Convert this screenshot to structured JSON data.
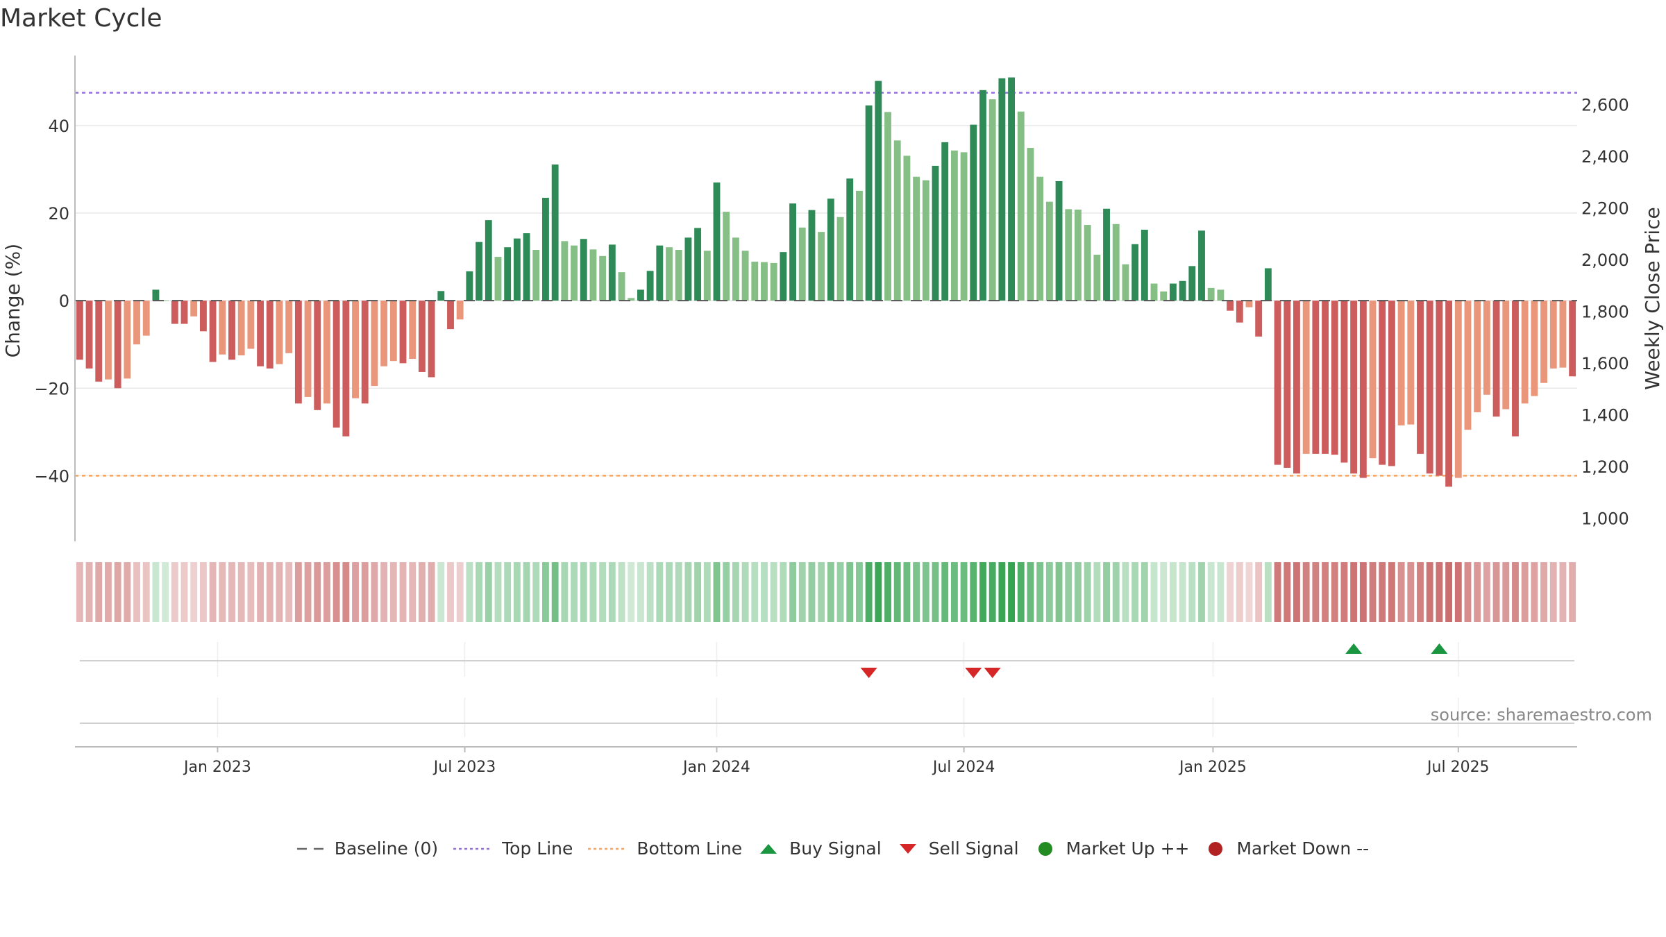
{
  "header": {
    "title": "Market Cycle"
  },
  "source": "source: sharemaestro.com",
  "chart_data": {
    "type": "bar",
    "title": "Market Cycle",
    "ylabel": "Change (%)",
    "y2label": "Weekly Close Price",
    "ylim": [
      -55,
      56
    ],
    "y2lim": [
      910,
      2790
    ],
    "yticks": [
      40,
      20,
      0,
      -20,
      -40
    ],
    "yticks_labels": [
      "40",
      "20",
      "0",
      "−20",
      "−40"
    ],
    "y2ticks": [
      2600,
      2400,
      2200,
      2000,
      1800,
      1600,
      1400,
      1200,
      1000
    ],
    "y2ticks_labels": [
      "2,600",
      "2,400",
      "2,200",
      "2,000",
      "1,800",
      "1,600",
      "1,400",
      "1,200",
      "1,000"
    ],
    "xticks": [
      "Jan 2023",
      "Jul 2023",
      "Jan 2024",
      "Jul 2024",
      "Jan 2025",
      "Jul 2025"
    ],
    "xtick_weeks": [
      15,
      41,
      67.5,
      93.5,
      119.7,
      145.5
    ],
    "top_line": 47.5,
    "bottom_line": -40,
    "grid": true,
    "legend_position": "bottom",
    "colors": {
      "strong_up": "#2e8b57",
      "weak_up": "#86bf86",
      "strong_down": "#cd5c5c",
      "weak_down": "#e9967a",
      "top_line": "#9370db",
      "bottom_line": "#f4a460",
      "buy": "#1a9641",
      "sell": "#d62728",
      "market_up": "#228b22",
      "market_down": "#b22222"
    },
    "weeks": [
      {
        "v": -13.5,
        "s": 1
      },
      {
        "v": -15.5,
        "s": 1
      },
      {
        "v": -18.5,
        "s": 1
      },
      {
        "v": -18,
        "s": 0
      },
      {
        "v": -20,
        "s": 1
      },
      {
        "v": -17.8,
        "s": 0
      },
      {
        "v": -10,
        "s": 0
      },
      {
        "v": -8,
        "s": 0
      },
      {
        "v": 2.5,
        "s": 1
      },
      {
        "v": 0,
        "s": 0
      },
      {
        "v": -5.3,
        "s": 1
      },
      {
        "v": -5.3,
        "s": 1
      },
      {
        "v": -3.6,
        "s": 0
      },
      {
        "v": -7,
        "s": 1
      },
      {
        "v": -14,
        "s": 1
      },
      {
        "v": -12.3,
        "s": 0
      },
      {
        "v": -13.5,
        "s": 1
      },
      {
        "v": -12.5,
        "s": 0
      },
      {
        "v": -11,
        "s": 0
      },
      {
        "v": -15,
        "s": 1
      },
      {
        "v": -15.5,
        "s": 1
      },
      {
        "v": -14.5,
        "s": 0
      },
      {
        "v": -12,
        "s": 0
      },
      {
        "v": -23.5,
        "s": 1
      },
      {
        "v": -22,
        "s": 0
      },
      {
        "v": -25,
        "s": 1
      },
      {
        "v": -23.5,
        "s": 0
      },
      {
        "v": -29,
        "s": 1
      },
      {
        "v": -31,
        "s": 1
      },
      {
        "v": -22.3,
        "s": 0
      },
      {
        "v": -23.5,
        "s": 1
      },
      {
        "v": -19.5,
        "s": 0
      },
      {
        "v": -15,
        "s": 0
      },
      {
        "v": -13.8,
        "s": 0
      },
      {
        "v": -14.3,
        "s": 1
      },
      {
        "v": -13.3,
        "s": 0
      },
      {
        "v": -16.3,
        "s": 1
      },
      {
        "v": -17.5,
        "s": 1
      },
      {
        "v": 2.2,
        "s": 1
      },
      {
        "v": -6.5,
        "s": 1
      },
      {
        "v": -4.3,
        "s": 0
      },
      {
        "v": 6.7,
        "s": 1
      },
      {
        "v": 13.4,
        "s": 1
      },
      {
        "v": 18.4,
        "s": 1
      },
      {
        "v": 10,
        "s": 0
      },
      {
        "v": 12.2,
        "s": 1
      },
      {
        "v": 14.2,
        "s": 1
      },
      {
        "v": 15.4,
        "s": 1
      },
      {
        "v": 11.6,
        "s": 0
      },
      {
        "v": 23.5,
        "s": 1
      },
      {
        "v": 31.1,
        "s": 1
      },
      {
        "v": 13.6,
        "s": 0
      },
      {
        "v": 12.6,
        "s": 0
      },
      {
        "v": 14.1,
        "s": 1
      },
      {
        "v": 11.7,
        "s": 0
      },
      {
        "v": 10.2,
        "s": 0
      },
      {
        "v": 12.8,
        "s": 1
      },
      {
        "v": 6.5,
        "s": 0
      },
      {
        "v": 0.6,
        "s": 0
      },
      {
        "v": 2.5,
        "s": 1
      },
      {
        "v": 6.8,
        "s": 1
      },
      {
        "v": 12.6,
        "s": 1
      },
      {
        "v": 12.2,
        "s": 0
      },
      {
        "v": 11.6,
        "s": 0
      },
      {
        "v": 14.4,
        "s": 1
      },
      {
        "v": 16.6,
        "s": 1
      },
      {
        "v": 11.4,
        "s": 0
      },
      {
        "v": 27,
        "s": 1
      },
      {
        "v": 20.3,
        "s": 0
      },
      {
        "v": 14.4,
        "s": 0
      },
      {
        "v": 11.4,
        "s": 0
      },
      {
        "v": 8.9,
        "s": 0
      },
      {
        "v": 8.8,
        "s": 0
      },
      {
        "v": 8.6,
        "s": 0
      },
      {
        "v": 11.1,
        "s": 1
      },
      {
        "v": 22.2,
        "s": 1
      },
      {
        "v": 16.7,
        "s": 0
      },
      {
        "v": 20.7,
        "s": 1
      },
      {
        "v": 15.7,
        "s": 0
      },
      {
        "v": 23.3,
        "s": 1
      },
      {
        "v": 19.1,
        "s": 0
      },
      {
        "v": 27.9,
        "s": 1
      },
      {
        "v": 25.1,
        "s": 0
      },
      {
        "v": 44.6,
        "s": 1
      },
      {
        "v": 50.2,
        "s": 1
      },
      {
        "v": 43.1,
        "s": 0
      },
      {
        "v": 36.6,
        "s": 0
      },
      {
        "v": 33.1,
        "s": 0
      },
      {
        "v": 28.3,
        "s": 0
      },
      {
        "v": 27.5,
        "s": 0
      },
      {
        "v": 30.8,
        "s": 1
      },
      {
        "v": 36.2,
        "s": 1
      },
      {
        "v": 34.3,
        "s": 0
      },
      {
        "v": 33.9,
        "s": 0
      },
      {
        "v": 40.2,
        "s": 1
      },
      {
        "v": 48.1,
        "s": 1
      },
      {
        "v": 46,
        "s": 0
      },
      {
        "v": 50.8,
        "s": 1
      },
      {
        "v": 51,
        "s": 1
      },
      {
        "v": 43.2,
        "s": 0
      },
      {
        "v": 34.9,
        "s": 0
      },
      {
        "v": 28.3,
        "s": 0
      },
      {
        "v": 22.6,
        "s": 0
      },
      {
        "v": 27.3,
        "s": 1
      },
      {
        "v": 20.9,
        "s": 0
      },
      {
        "v": 20.8,
        "s": 0
      },
      {
        "v": 17.3,
        "s": 0
      },
      {
        "v": 10.5,
        "s": 0
      },
      {
        "v": 21,
        "s": 1
      },
      {
        "v": 17.5,
        "s": 0
      },
      {
        "v": 8.3,
        "s": 0
      },
      {
        "v": 12.9,
        "s": 1
      },
      {
        "v": 16.2,
        "s": 1
      },
      {
        "v": 3.9,
        "s": 0
      },
      {
        "v": 2.1,
        "s": 0
      },
      {
        "v": 3.9,
        "s": 1
      },
      {
        "v": 4.5,
        "s": 1
      },
      {
        "v": 7.9,
        "s": 1
      },
      {
        "v": 16,
        "s": 1
      },
      {
        "v": 2.9,
        "s": 0
      },
      {
        "v": 2.5,
        "s": 0
      },
      {
        "v": -2.3,
        "s": 1
      },
      {
        "v": -5,
        "s": 1
      },
      {
        "v": -1.5,
        "s": 0
      },
      {
        "v": -8.2,
        "s": 1
      },
      {
        "v": 7.4,
        "s": 1
      },
      {
        "v": -37.5,
        "s": 1
      },
      {
        "v": -38.2,
        "s": 1
      },
      {
        "v": -39.5,
        "s": 1
      },
      {
        "v": -35,
        "s": 0
      },
      {
        "v": -35,
        "s": 1
      },
      {
        "v": -35,
        "s": 1
      },
      {
        "v": -35.2,
        "s": 1
      },
      {
        "v": -37,
        "s": 1
      },
      {
        "v": -39.5,
        "s": 1
      },
      {
        "v": -40.5,
        "s": 1
      },
      {
        "v": -36,
        "s": 0
      },
      {
        "v": -37.5,
        "s": 1
      },
      {
        "v": -37.8,
        "s": 1
      },
      {
        "v": -28.5,
        "s": 0
      },
      {
        "v": -28.3,
        "s": 0
      },
      {
        "v": -35,
        "s": 1
      },
      {
        "v": -39.5,
        "s": 1
      },
      {
        "v": -40,
        "s": 1
      },
      {
        "v": -42.5,
        "s": 1
      },
      {
        "v": -40.5,
        "s": 0
      },
      {
        "v": -29.5,
        "s": 0
      },
      {
        "v": -25.5,
        "s": 0
      },
      {
        "v": -21.5,
        "s": 0
      },
      {
        "v": -26.5,
        "s": 1
      },
      {
        "v": -24.8,
        "s": 0
      },
      {
        "v": -31,
        "s": 1
      },
      {
        "v": -23.5,
        "s": 0
      },
      {
        "v": -21.8,
        "s": 0
      },
      {
        "v": -18.8,
        "s": 0
      },
      {
        "v": -15.5,
        "s": 0
      },
      {
        "v": -15.3,
        "s": 0
      },
      {
        "v": -17.3,
        "s": 1
      }
    ],
    "buy_signals": [
      134,
      143
    ],
    "sell_signals": [
      83,
      94,
      96
    ]
  },
  "legend": [
    {
      "key": "baseline",
      "label": "Baseline (0)",
      "icon": "dash-line-icon"
    },
    {
      "key": "top",
      "label": "Top Line",
      "icon": "dotted-line-icon"
    },
    {
      "key": "bottom",
      "label": "Bottom Line",
      "icon": "dotted-line-icon"
    },
    {
      "key": "buy",
      "label": "Buy Signal",
      "icon": "triangle-up-icon"
    },
    {
      "key": "sell",
      "label": "Sell Signal",
      "icon": "triangle-down-icon"
    },
    {
      "key": "mup",
      "label": "Market Up ++",
      "icon": "circle-icon"
    },
    {
      "key": "mdown",
      "label": "Market Down --",
      "icon": "circle-icon"
    }
  ]
}
